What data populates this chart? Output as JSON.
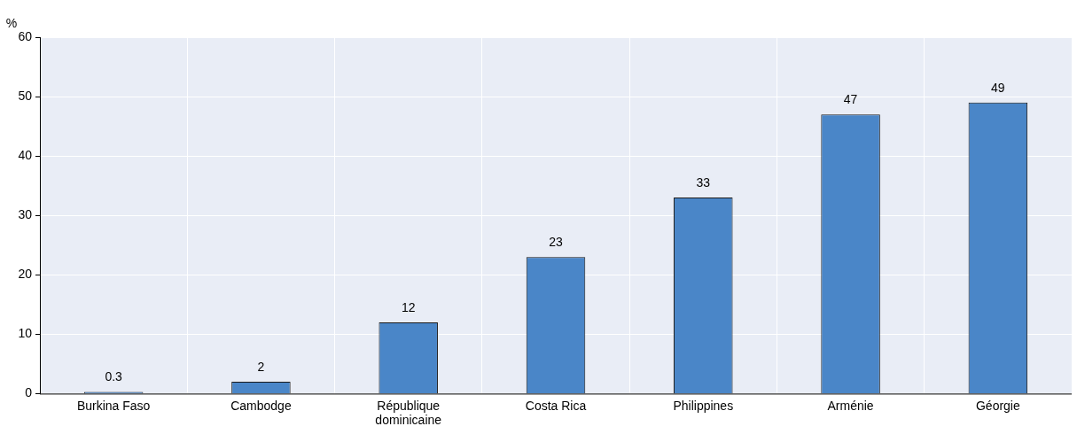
{
  "chart_data": {
    "type": "bar",
    "ylabel": "%",
    "categories": [
      "Burkina Faso",
      "Cambodge",
      "République dominicaine",
      "Costa Rica",
      "Philippines",
      "Arménie",
      "Géorgie"
    ],
    "values": [
      0.3,
      2,
      12,
      23,
      33,
      47,
      49
    ],
    "color": "#4a86c8",
    "ylim": [
      0,
      60
    ],
    "yticks": [
      0,
      10,
      20,
      30,
      40,
      50,
      60
    ],
    "grid": true,
    "data_labels": true
  }
}
